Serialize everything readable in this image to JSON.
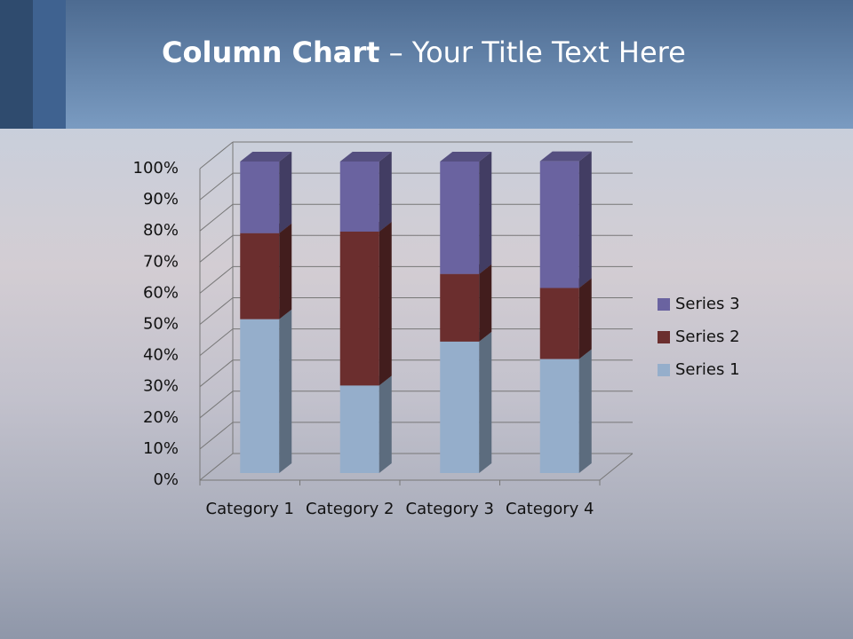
{
  "chart_data": {
    "type": "stacked3d",
    "title_bold": "Column Chart",
    "title_rest": "– Your Title Text Here",
    "categories": [
      "Category 1",
      "Category 2",
      "Category 3",
      "Category 4"
    ],
    "series": [
      {
        "name": "Series 1",
        "color": "#95aecb",
        "values": [
          49.4,
          28.1,
          42.2,
          36.6
        ]
      },
      {
        "name": "Series 2",
        "color": "#6b2e2e",
        "values": [
          27.6,
          49.4,
          21.7,
          22.8
        ]
      },
      {
        "name": "Series 3",
        "color": "#6a63a0",
        "values": [
          23.0,
          22.5,
          36.1,
          40.7
        ]
      }
    ],
    "ylim": [
      0,
      100
    ],
    "yticks": [
      {
        "value": 0,
        "label": "0%"
      },
      {
        "value": 10,
        "label": "10%"
      },
      {
        "value": 20,
        "label": "20%"
      },
      {
        "value": 30,
        "label": "30%"
      },
      {
        "value": 40,
        "label": "40%"
      },
      {
        "value": 50,
        "label": "50%"
      },
      {
        "value": 60,
        "label": "60%"
      },
      {
        "value": 70,
        "label": "70%"
      },
      {
        "value": 80,
        "label": "80%"
      },
      {
        "value": 90,
        "label": "90%"
      },
      {
        "value": 100,
        "label": "100%"
      }
    ],
    "grid": true,
    "legend": "right"
  }
}
